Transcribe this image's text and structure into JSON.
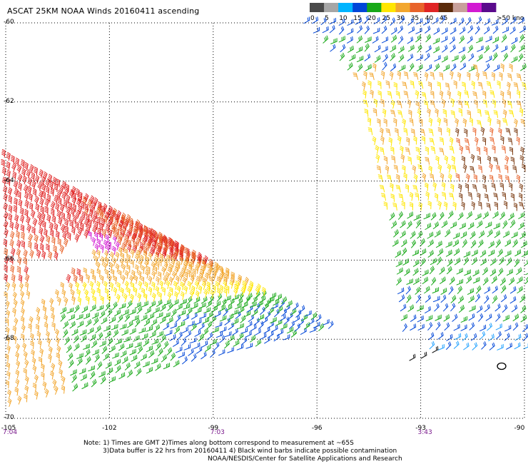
{
  "title": "ASCAT 25KM NOAA Winds 20160411 ascending",
  "colorbar": {
    "labels": [
      "0",
      "5",
      "10",
      "15",
      "20",
      "25",
      "30",
      "35",
      "40",
      "45",
      ">50 knots"
    ],
    "colors": [
      "#4a4a4a",
      "#a6a6a6",
      "#00b4ff",
      "#0046d8",
      "#17a817",
      "#ffe600",
      "#f2a62e",
      "#e8632a",
      "#e02424",
      "#5a2a0a",
      "#c8a09a",
      "#d21ad2",
      "#5a0a8c"
    ]
  },
  "chart_data": {
    "type": "map",
    "xlabel": "",
    "ylabel": "",
    "x_ticks": [
      "-105",
      "-102",
      "-99",
      "-96",
      "-93",
      "-90"
    ],
    "y_ticks": [
      "-60",
      "-62",
      "-64",
      "-66",
      "-68",
      "-70"
    ],
    "xlim": [
      -105,
      -90
    ],
    "ylim": [
      -70,
      -60
    ],
    "grid": true,
    "pass_times": [
      {
        "lon": -105,
        "label": "7:04"
      },
      {
        "lon": -99,
        "label": "7:03"
      },
      {
        "lon": -93,
        "label": "3:43"
      }
    ]
  },
  "notes": [
    "Note: 1) Times are GMT 2)Times along bottom correspond to measurement at ~65S",
    "3)Data buffer is 22 hrs from 20160411 4) Black wind barbs indicate possible contamination",
    "NOAA/NESDIS/Center for Satellite Applications and Research"
  ]
}
